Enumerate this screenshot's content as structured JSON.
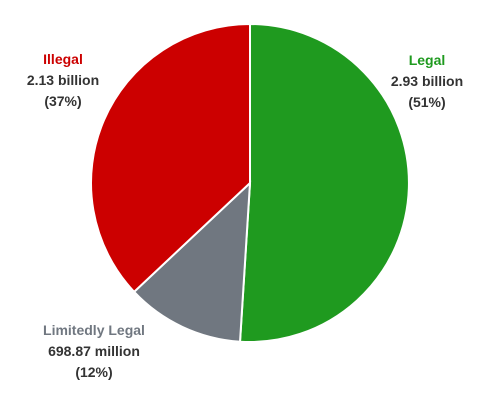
{
  "chart_data": {
    "type": "pie",
    "title": "",
    "start": "12 o'clock, clockwise",
    "slices": [
      {
        "label": "Legal",
        "value_text": "2.93 billion",
        "pct_text": "(51%)",
        "percent": 51,
        "value": 2930000000,
        "color": "#1f9a1f",
        "label_color": "#1f9a1f"
      },
      {
        "label": "Limitedly Legal",
        "value_text": "698.87 million",
        "pct_text": "(12%)",
        "percent": 12,
        "value": 698870000,
        "color": "#707780",
        "label_color": "#707780"
      },
      {
        "label": "Illegal",
        "value_text": "2.13 billion",
        "pct_text": "(37%)",
        "percent": 37,
        "value": 2130000000,
        "color": "#cc0000",
        "label_color": "#cc0000"
      }
    ]
  }
}
